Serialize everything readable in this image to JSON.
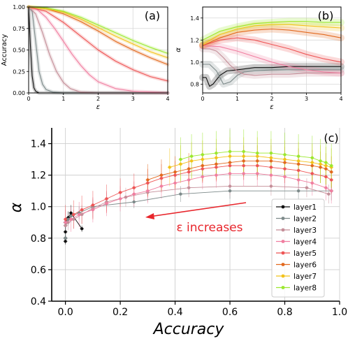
{
  "layer_colors": [
    "#101010",
    "#7d8a8a",
    "#c48e98",
    "#f07ea0",
    "#ee5555",
    "#e2691e",
    "#f2c21a",
    "#9be82e"
  ],
  "chart_data": [
    {
      "panel": "(a)",
      "type": "line",
      "title": "",
      "xlabel": "ε",
      "ylabel": "Accuracy",
      "xlim": [
        0,
        4
      ],
      "ylim": [
        0,
        1
      ],
      "xticks": [
        "0",
        "1",
        "2",
        "3",
        "4"
      ],
      "yticks": [
        "0.00",
        "0.25",
        "0.50",
        "0.75",
        "1.00"
      ],
      "grid": true,
      "series": [
        {
          "x": [
            0,
            0.05,
            0.1,
            0.15,
            0.2,
            0.3,
            0.5,
            1,
            4
          ],
          "values": [
            1.0,
            0.55,
            0.2,
            0.06,
            0.02,
            0.0,
            0.0,
            0.0,
            0.0
          ]
        },
        {
          "x": [
            0,
            0.1,
            0.2,
            0.3,
            0.4,
            0.5,
            0.7,
            1,
            4
          ],
          "values": [
            1.0,
            0.95,
            0.6,
            0.25,
            0.1,
            0.04,
            0.01,
            0.0,
            0.0
          ]
        },
        {
          "x": [
            0,
            0.2,
            0.4,
            0.6,
            0.8,
            1.0,
            1.2,
            1.5,
            2,
            4
          ],
          "values": [
            1.0,
            0.92,
            0.7,
            0.45,
            0.25,
            0.12,
            0.05,
            0.01,
            0.0,
            0.0
          ]
        },
        {
          "x": [
            0,
            0.25,
            0.5,
            0.75,
            1.0,
            1.25,
            1.5,
            1.75,
            2.0,
            2.5,
            3.0,
            4.0
          ],
          "values": [
            1.0,
            0.97,
            0.88,
            0.75,
            0.6,
            0.45,
            0.32,
            0.21,
            0.13,
            0.05,
            0.02,
            0.0
          ]
        },
        {
          "x": [
            0,
            0.5,
            1.0,
            1.5,
            2.0,
            2.5,
            3.0,
            3.5,
            4.0
          ],
          "values": [
            1.0,
            0.95,
            0.82,
            0.66,
            0.5,
            0.37,
            0.27,
            0.19,
            0.14
          ]
        },
        {
          "x": [
            0,
            0.5,
            1.0,
            1.5,
            2.0,
            2.5,
            3.0,
            3.5,
            4.0
          ],
          "values": [
            1.0,
            0.98,
            0.92,
            0.83,
            0.72,
            0.6,
            0.5,
            0.41,
            0.33
          ]
        },
        {
          "x": [
            0,
            0.5,
            1.0,
            1.5,
            2.0,
            2.5,
            3.0,
            3.5,
            4.0
          ],
          "values": [
            1.0,
            0.98,
            0.94,
            0.86,
            0.76,
            0.66,
            0.57,
            0.48,
            0.41
          ]
        },
        {
          "x": [
            0,
            0.5,
            1.0,
            1.5,
            2.0,
            2.5,
            3.0,
            3.5,
            4.0
          ],
          "values": [
            1.0,
            0.99,
            0.95,
            0.88,
            0.79,
            0.7,
            0.61,
            0.53,
            0.46
          ]
        }
      ]
    },
    {
      "panel": "(b)",
      "type": "line",
      "title": "",
      "xlabel": "ε",
      "ylabel": "α",
      "xlim": [
        0,
        4
      ],
      "ylim": [
        0.72,
        1.5
      ],
      "xticks": [
        "0",
        "1",
        "2",
        "3",
        "4"
      ],
      "yticks": [
        "0.8",
        "1.0",
        "1.2",
        "1.4"
      ],
      "grid": true,
      "series": [
        {
          "x": [
            0,
            0.1,
            0.2,
            0.3,
            0.4,
            0.5,
            0.7,
            1,
            1.5,
            2,
            2.5,
            3,
            3.5,
            4
          ],
          "values": [
            0.86,
            0.86,
            0.78,
            0.8,
            0.84,
            0.88,
            0.92,
            0.93,
            0.95,
            0.95,
            0.96,
            0.96,
            0.96,
            0.96
          ]
        },
        {
          "x": [
            0,
            0.2,
            0.4,
            0.6,
            0.8,
            1.0,
            1.2,
            1.5,
            2,
            2.5,
            3,
            3.5,
            4
          ],
          "values": [
            0.98,
            0.98,
            0.92,
            0.8,
            0.82,
            0.88,
            0.91,
            0.92,
            0.93,
            0.93,
            0.93,
            0.93,
            0.93
          ]
        },
        {
          "x": [
            0,
            0.2,
            0.4,
            0.6,
            0.8,
            1.0,
            1.2,
            1.5,
            2,
            2.5,
            3,
            3.5,
            4
          ],
          "values": [
            1.12,
            1.12,
            1.1,
            1.04,
            0.97,
            0.92,
            0.89,
            0.88,
            0.89,
            0.89,
            0.9,
            0.9,
            0.9
          ]
        },
        {
          "x": [
            0,
            0.5,
            1.0,
            1.5,
            2.0,
            2.5,
            3.0,
            3.5,
            4.0
          ],
          "values": [
            1.15,
            1.14,
            1.1,
            1.05,
            1.0,
            0.96,
            0.93,
            0.91,
            0.9
          ]
        },
        {
          "x": [
            0,
            0.5,
            1.0,
            1.5,
            2.0,
            2.5,
            3.0,
            3.5,
            4.0
          ],
          "values": [
            1.15,
            1.2,
            1.22,
            1.2,
            1.16,
            1.12,
            1.07,
            1.03,
            1.0
          ]
        },
        {
          "x": [
            0,
            0.5,
            1.0,
            1.5,
            2.0,
            2.5,
            3.0,
            3.5,
            4.0
          ],
          "values": [
            1.15,
            1.22,
            1.27,
            1.29,
            1.3,
            1.29,
            1.27,
            1.25,
            1.22
          ]
        },
        {
          "x": [
            0,
            0.5,
            1.0,
            1.5,
            2.0,
            2.5,
            3.0,
            3.5,
            4.0
          ],
          "values": [
            1.16,
            1.25,
            1.3,
            1.33,
            1.34,
            1.34,
            1.33,
            1.32,
            1.31
          ]
        },
        {
          "x": [
            0,
            0.5,
            1.0,
            1.5,
            2.0,
            2.5,
            3.0,
            3.5,
            4.0
          ],
          "values": [
            1.2,
            1.28,
            1.32,
            1.35,
            1.36,
            1.37,
            1.37,
            1.36,
            1.36
          ]
        }
      ]
    },
    {
      "panel": "(c)",
      "type": "scatter",
      "title": "",
      "xlabel": "Accuracy",
      "ylabel": "α",
      "xlim": [
        -0.05,
        1.0
      ],
      "ylim": [
        0.4,
        1.5
      ],
      "xticks": [
        "0.0",
        "0.2",
        "0.4",
        "0.6",
        "0.8",
        "1.0"
      ],
      "yticks": [
        "0.4",
        "0.6",
        "0.8",
        "1.0",
        "1.2",
        "1.4"
      ],
      "grid": true,
      "legend_position": "lower-right",
      "annotation": "ε increases",
      "series": [
        {
          "name": "layer1",
          "x": [
            0.0,
            0.0,
            0.0,
            0.0,
            0.01,
            0.02,
            0.06
          ],
          "values": [
            0.78,
            0.8,
            0.84,
            0.9,
            0.93,
            0.96,
            0.86
          ],
          "err": [
            0.02,
            0.02,
            0.03,
            0.03,
            0.04,
            0.05,
            0.02
          ]
        },
        {
          "name": "layer2",
          "x": [
            0.0,
            0.0,
            0.01,
            0.02,
            0.05,
            0.1,
            0.25,
            0.42,
            0.6,
            0.85,
            0.97
          ],
          "values": [
            0.8,
            0.88,
            0.92,
            0.94,
            0.96,
            1.0,
            1.03,
            1.08,
            1.1,
            1.1,
            1.1
          ],
          "err": [
            0.03,
            0.03,
            0.04,
            0.04,
            0.04,
            0.04,
            0.04,
            0.05,
            0.05,
            0.06,
            0.06
          ]
        },
        {
          "name": "layer3",
          "x": [
            0.0,
            0.01,
            0.03,
            0.06,
            0.1,
            0.15,
            0.22,
            0.3,
            0.45,
            0.6,
            0.75,
            0.88,
            0.96
          ],
          "values": [
            0.88,
            0.9,
            0.92,
            0.95,
            0.99,
            1.03,
            1.06,
            1.09,
            1.12,
            1.13,
            1.13,
            1.12,
            1.08
          ],
          "err": [
            0.05,
            0.05,
            0.06,
            0.06,
            0.06,
            0.06,
            0.06,
            0.06,
            0.06,
            0.06,
            0.06,
            0.06,
            0.06
          ]
        },
        {
          "name": "layer4",
          "x": [
            0.0,
            0.02,
            0.05,
            0.1,
            0.15,
            0.2,
            0.25,
            0.3,
            0.35,
            0.4,
            0.45,
            0.5,
            0.55,
            0.6,
            0.65,
            0.7,
            0.75,
            0.8,
            0.85,
            0.9,
            0.95,
            0.97
          ],
          "values": [
            0.9,
            0.92,
            0.95,
            0.98,
            1.02,
            1.05,
            1.08,
            1.1,
            1.13,
            1.15,
            1.17,
            1.19,
            1.2,
            1.21,
            1.21,
            1.21,
            1.2,
            1.19,
            1.17,
            1.15,
            1.12,
            1.1
          ],
          "err": [
            0.08,
            0.08,
            0.08,
            0.08,
            0.08,
            0.08,
            0.08,
            0.08,
            0.08,
            0.08,
            0.08,
            0.08,
            0.08,
            0.08,
            0.08,
            0.08,
            0.08,
            0.08,
            0.08,
            0.08,
            0.08,
            0.08
          ]
        },
        {
          "name": "layer5",
          "x": [
            0.0,
            0.03,
            0.06,
            0.1,
            0.15,
            0.2,
            0.25,
            0.3,
            0.35,
            0.4,
            0.45,
            0.5,
            0.55,
            0.6,
            0.65,
            0.7,
            0.75,
            0.8,
            0.85,
            0.9,
            0.95,
            0.97
          ],
          "values": [
            0.92,
            0.95,
            0.98,
            1.01,
            1.05,
            1.09,
            1.12,
            1.15,
            1.18,
            1.2,
            1.22,
            1.24,
            1.25,
            1.26,
            1.26,
            1.26,
            1.25,
            1.24,
            1.23,
            1.21,
            1.19,
            1.17
          ],
          "err": [
            0.09,
            0.09,
            0.09,
            0.09,
            0.09,
            0.09,
            0.09,
            0.09,
            0.09,
            0.09,
            0.09,
            0.09,
            0.09,
            0.09,
            0.09,
            0.09,
            0.09,
            0.09,
            0.09,
            0.09,
            0.09,
            0.09
          ]
        },
        {
          "name": "layer6",
          "x": [
            0.3,
            0.35,
            0.4,
            0.45,
            0.5,
            0.55,
            0.6,
            0.65,
            0.7,
            0.75,
            0.8,
            0.85,
            0.9,
            0.93,
            0.95,
            0.97
          ],
          "values": [
            1.17,
            1.2,
            1.22,
            1.24,
            1.26,
            1.27,
            1.28,
            1.29,
            1.29,
            1.29,
            1.28,
            1.27,
            1.26,
            1.25,
            1.24,
            1.22
          ],
          "err": [
            0.1,
            0.1,
            0.1,
            0.1,
            0.1,
            0.1,
            0.1,
            0.1,
            0.1,
            0.1,
            0.1,
            0.1,
            0.1,
            0.1,
            0.1,
            0.1
          ]
        },
        {
          "name": "layer7",
          "x": [
            0.38,
            0.42,
            0.46,
            0.5,
            0.55,
            0.6,
            0.65,
            0.7,
            0.75,
            0.8,
            0.85,
            0.9,
            0.93,
            0.95,
            0.97
          ],
          "values": [
            1.25,
            1.27,
            1.29,
            1.3,
            1.31,
            1.32,
            1.32,
            1.32,
            1.31,
            1.3,
            1.29,
            1.28,
            1.27,
            1.26,
            1.25
          ],
          "err": [
            0.12,
            0.12,
            0.12,
            0.12,
            0.12,
            0.12,
            0.12,
            0.12,
            0.12,
            0.12,
            0.12,
            0.12,
            0.12,
            0.12,
            0.12
          ]
        },
        {
          "name": "layer8",
          "x": [
            0.42,
            0.46,
            0.5,
            0.55,
            0.6,
            0.65,
            0.7,
            0.75,
            0.8,
            0.85,
            0.9,
            0.93,
            0.95,
            0.97
          ],
          "values": [
            1.3,
            1.32,
            1.33,
            1.34,
            1.35,
            1.35,
            1.34,
            1.34,
            1.33,
            1.32,
            1.31,
            1.29,
            1.28,
            1.26
          ],
          "err": [
            0.14,
            0.14,
            0.14,
            0.14,
            0.14,
            0.14,
            0.14,
            0.14,
            0.14,
            0.14,
            0.14,
            0.14,
            0.14,
            0.14
          ]
        }
      ]
    }
  ]
}
